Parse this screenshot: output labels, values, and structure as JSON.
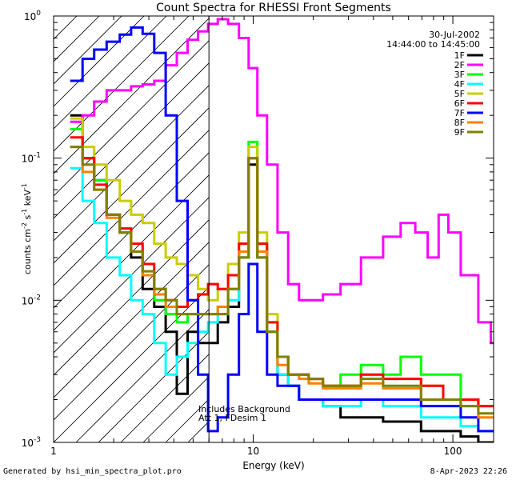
{
  "chart_data": {
    "type": "line",
    "title": "Count Spectra for RHESSI Front Segments",
    "xlabel": "Energy (keV)",
    "ylabel_parts": [
      "counts cm",
      "-2",
      " s",
      "-1",
      " keV",
      "-1"
    ],
    "xscale": "log",
    "yscale": "log",
    "xlim": [
      1,
      160
    ],
    "ylim": [
      0.001,
      1
    ],
    "x_ticks": [
      {
        "value": 1,
        "label": "1"
      },
      {
        "value": 10,
        "label": "10"
      },
      {
        "value": 100,
        "label": "100"
      }
    ],
    "y_ticks": [
      {
        "value": 0.001,
        "base": "10",
        "exp": "-3"
      },
      {
        "value": 0.01,
        "base": "10",
        "exp": "-2"
      },
      {
        "value": 0.1,
        "base": "10",
        "exp": "-1"
      },
      {
        "value": 1,
        "base": "10",
        "exp": "0"
      }
    ],
    "date": "30-Jul-2002",
    "time_range": "14:44:00 to 14:45:00",
    "threshold_energy_keV": 6,
    "annotation_lines": [
      "Includes Background",
      "Att 1, FDesim 1"
    ],
    "series": [
      {
        "name": "1F",
        "color": "#000000",
        "x": [
          1.3,
          1.5,
          1.7,
          2.0,
          2.3,
          2.6,
          3.0,
          3.4,
          3.9,
          4.4,
          5.0,
          5.6,
          6.3,
          7.0,
          8.0,
          9.0,
          10.0,
          11.0,
          12.5,
          14,
          16,
          18,
          20,
          25,
          30,
          40,
          50,
          60,
          80,
          100,
          120,
          150
        ],
        "y": [
          0.2,
          0.1,
          0.07,
          0.04,
          0.03,
          0.02,
          0.012,
          0.009,
          0.006,
          0.0022,
          0.006,
          0.005,
          0.005,
          0.007,
          0.009,
          0.02,
          0.09,
          0.02,
          0.006,
          0.003,
          0.0025,
          0.002,
          0.002,
          0.0018,
          0.0015,
          0.0015,
          0.0014,
          0.0014,
          0.0012,
          0.0012,
          0.0011,
          0.001
        ]
      },
      {
        "name": "2F",
        "color": "#ff00ff",
        "x": [
          1.3,
          1.5,
          1.7,
          2.0,
          2.3,
          2.6,
          3.0,
          3.4,
          3.9,
          4.4,
          5.0,
          5.6,
          6.3,
          7.0,
          8.0,
          9.0,
          10.0,
          11.0,
          12.5,
          14,
          16,
          18,
          20,
          25,
          30,
          40,
          50,
          60,
          70,
          80,
          90,
          100,
          120,
          150,
          160
        ],
        "y": [
          0.18,
          0.2,
          0.25,
          0.3,
          0.3,
          0.32,
          0.33,
          0.35,
          0.45,
          0.55,
          0.68,
          0.78,
          0.88,
          0.95,
          0.88,
          0.7,
          0.43,
          0.2,
          0.09,
          0.03,
          0.013,
          0.01,
          0.01,
          0.011,
          0.013,
          0.02,
          0.028,
          0.035,
          0.03,
          0.02,
          0.04,
          0.03,
          0.015,
          0.007,
          0.005
        ]
      },
      {
        "name": "3F",
        "color": "#00ff00",
        "x": [
          1.3,
          1.5,
          1.7,
          2.0,
          2.3,
          2.6,
          3.0,
          3.4,
          3.9,
          4.4,
          5.0,
          5.6,
          6.3,
          7.0,
          8.0,
          9.0,
          10.0,
          11.0,
          12.5,
          14,
          16,
          18,
          20,
          25,
          30,
          40,
          50,
          60,
          80,
          100,
          120,
          150
        ],
        "y": [
          0.16,
          0.1,
          0.07,
          0.04,
          0.03,
          0.022,
          0.015,
          0.01,
          0.008,
          0.007,
          0.008,
          0.008,
          0.008,
          0.009,
          0.012,
          0.025,
          0.13,
          0.025,
          0.007,
          0.004,
          0.003,
          0.003,
          0.0028,
          0.0025,
          0.003,
          0.0035,
          0.003,
          0.004,
          0.003,
          0.003,
          0.002,
          0.0018
        ]
      },
      {
        "name": "4F",
        "color": "#00ffff",
        "x": [
          1.3,
          1.5,
          1.7,
          2.0,
          2.3,
          2.6,
          3.0,
          3.4,
          3.9,
          4.4,
          5.0,
          5.6,
          6.3,
          7.0,
          8.0,
          9.0,
          10.0,
          11.0,
          12.5,
          14,
          16,
          18,
          20,
          25,
          30,
          40,
          50,
          60,
          80,
          100,
          120,
          150
        ],
        "y": [
          0.085,
          0.05,
          0.035,
          0.02,
          0.015,
          0.01,
          0.008,
          0.005,
          0.003,
          0.004,
          0.005,
          0.006,
          0.007,
          0.008,
          0.01,
          0.02,
          0.1,
          0.02,
          0.006,
          0.003,
          0.0025,
          0.002,
          0.002,
          0.0018,
          0.0018,
          0.002,
          0.0018,
          0.0018,
          0.0015,
          0.0015,
          0.0013,
          0.0012
        ]
      },
      {
        "name": "5F",
        "color": "#cccc00",
        "x": [
          1.3,
          1.5,
          1.7,
          2.0,
          2.3,
          2.6,
          3.0,
          3.4,
          3.9,
          4.4,
          5.0,
          5.6,
          6.3,
          7.0,
          8.0,
          9.0,
          10.0,
          11.0,
          12.5,
          14,
          16,
          18,
          20,
          25,
          30,
          40,
          50,
          60,
          80,
          100,
          120,
          150
        ],
        "y": [
          0.19,
          0.12,
          0.09,
          0.07,
          0.05,
          0.04,
          0.035,
          0.025,
          0.02,
          0.018,
          0.015,
          0.012,
          0.01,
          0.012,
          0.018,
          0.03,
          0.12,
          0.03,
          0.008,
          0.004,
          0.003,
          0.003,
          0.0028,
          0.0025,
          0.0025,
          0.003,
          0.0028,
          0.0028,
          0.0025,
          0.002,
          0.002,
          0.0018
        ]
      },
      {
        "name": "6F",
        "color": "#ff0000",
        "x": [
          1.3,
          1.5,
          1.7,
          2.0,
          2.3,
          2.6,
          3.0,
          3.4,
          3.9,
          4.4,
          5.0,
          5.6,
          6.3,
          7.0,
          8.0,
          9.0,
          10.0,
          11.0,
          12.5,
          14,
          16,
          18,
          20,
          25,
          30,
          40,
          50,
          60,
          80,
          100,
          120,
          150
        ],
        "y": [
          0.14,
          0.1,
          0.065,
          0.04,
          0.032,
          0.025,
          0.018,
          0.012,
          0.01,
          0.009,
          0.01,
          0.011,
          0.013,
          0.012,
          0.015,
          0.025,
          0.1,
          0.025,
          0.007,
          0.004,
          0.003,
          0.003,
          0.0028,
          0.0025,
          0.0025,
          0.003,
          0.0028,
          0.0028,
          0.0025,
          0.002,
          0.002,
          0.0018
        ]
      },
      {
        "name": "7F",
        "color": "#0000ff",
        "x": [
          1.3,
          1.5,
          1.7,
          2.0,
          2.3,
          2.6,
          3.0,
          3.4,
          3.9,
          4.4,
          5.0,
          5.6,
          6.3,
          7.0,
          8.0,
          9.0,
          10.0,
          11.0,
          12.5,
          14,
          16,
          18,
          20,
          25,
          30,
          40,
          50,
          60,
          80,
          100,
          120,
          150
        ],
        "y": [
          0.35,
          0.5,
          0.58,
          0.66,
          0.74,
          0.83,
          0.75,
          0.55,
          0.2,
          0.05,
          0.01,
          0.003,
          0.0012,
          0.0015,
          0.003,
          0.008,
          0.018,
          0.006,
          0.003,
          0.0025,
          0.0025,
          0.002,
          0.002,
          0.002,
          0.002,
          0.002,
          0.002,
          0.002,
          0.0018,
          0.0018,
          0.0015,
          0.0012
        ]
      },
      {
        "name": "8F",
        "color": "#ff8000",
        "x": [
          1.3,
          1.5,
          1.7,
          2.0,
          2.3,
          2.6,
          3.0,
          3.4,
          3.9,
          4.4,
          5.0,
          5.6,
          6.3,
          7.0,
          8.0,
          9.0,
          10.0,
          11.0,
          12.5,
          14,
          16,
          18,
          20,
          25,
          30,
          40,
          50,
          60,
          80,
          100,
          120,
          150
        ],
        "y": [
          0.12,
          0.08,
          0.06,
          0.038,
          0.03,
          0.022,
          0.015,
          0.011,
          0.009,
          0.008,
          0.008,
          0.008,
          0.008,
          0.009,
          0.012,
          0.022,
          0.1,
          0.022,
          0.006,
          0.0035,
          0.003,
          0.0028,
          0.0026,
          0.0024,
          0.0024,
          0.0026,
          0.0024,
          0.0024,
          0.002,
          0.002,
          0.0018,
          0.0015
        ]
      },
      {
        "name": "9F",
        "color": "#808000",
        "x": [
          1.3,
          1.5,
          1.7,
          2.0,
          2.3,
          2.6,
          3.0,
          3.4,
          3.9,
          4.4,
          5.0,
          5.6,
          6.3,
          7.0,
          8.0,
          9.0,
          10.0,
          11.0,
          12.5,
          14,
          16,
          18,
          20,
          25,
          30,
          40,
          50,
          60,
          80,
          100,
          120,
          150
        ],
        "y": [
          0.12,
          0.09,
          0.06,
          0.04,
          0.03,
          0.022,
          0.016,
          0.012,
          0.01,
          0.008,
          0.008,
          0.008,
          0.008,
          0.008,
          0.012,
          0.02,
          0.1,
          0.02,
          0.006,
          0.004,
          0.003,
          0.003,
          0.0028,
          0.0025,
          0.0025,
          0.0028,
          0.0025,
          0.0025,
          0.002,
          0.002,
          0.0018,
          0.0016
        ]
      }
    ]
  },
  "footer": {
    "generated_by": "Generated by hsi_min_spectra_plot.pro",
    "timestamp": "8-Apr-2023 22:26"
  }
}
